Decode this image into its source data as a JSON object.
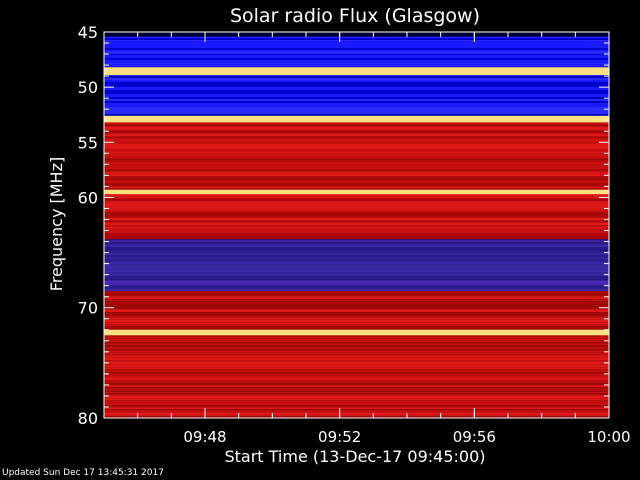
{
  "chart_data": {
    "type": "heatmap",
    "title": "Solar radio Flux (Glasgow)",
    "xlabel": "Start Time (13-Dec-17 09:45:00)",
    "ylabel": "Frequency [MHz]",
    "xlim": [
      "09:45",
      "10:00"
    ],
    "ylim": [
      45,
      80
    ],
    "y_inverted": true,
    "x_ticks": [
      "09:48",
      "09:52",
      "09:56",
      "10:00"
    ],
    "y_ticks": [
      45,
      50,
      55,
      60,
      70,
      80
    ],
    "colormap": [
      "#000000",
      "#0000ff",
      "#ff0000",
      "#ffff80"
    ],
    "bands": [
      {
        "from": 45.0,
        "to": 48.2,
        "level": "low"
      },
      {
        "from": 48.2,
        "to": 48.9,
        "level": "very-high"
      },
      {
        "from": 48.9,
        "to": 52.6,
        "level": "low"
      },
      {
        "from": 52.6,
        "to": 53.2,
        "level": "very-high"
      },
      {
        "from": 53.2,
        "to": 63.8,
        "level": "medium"
      },
      {
        "from": 59.3,
        "to": 59.7,
        "level": "very-high"
      },
      {
        "from": 63.8,
        "to": 68.5,
        "level": "low-medium"
      },
      {
        "from": 68.5,
        "to": 80.0,
        "level": "medium"
      },
      {
        "from": 72.0,
        "to": 72.5,
        "level": "very-high"
      }
    ]
  },
  "footer": {
    "updated": "Updated Sun Dec 17 13:45:31 2017"
  }
}
